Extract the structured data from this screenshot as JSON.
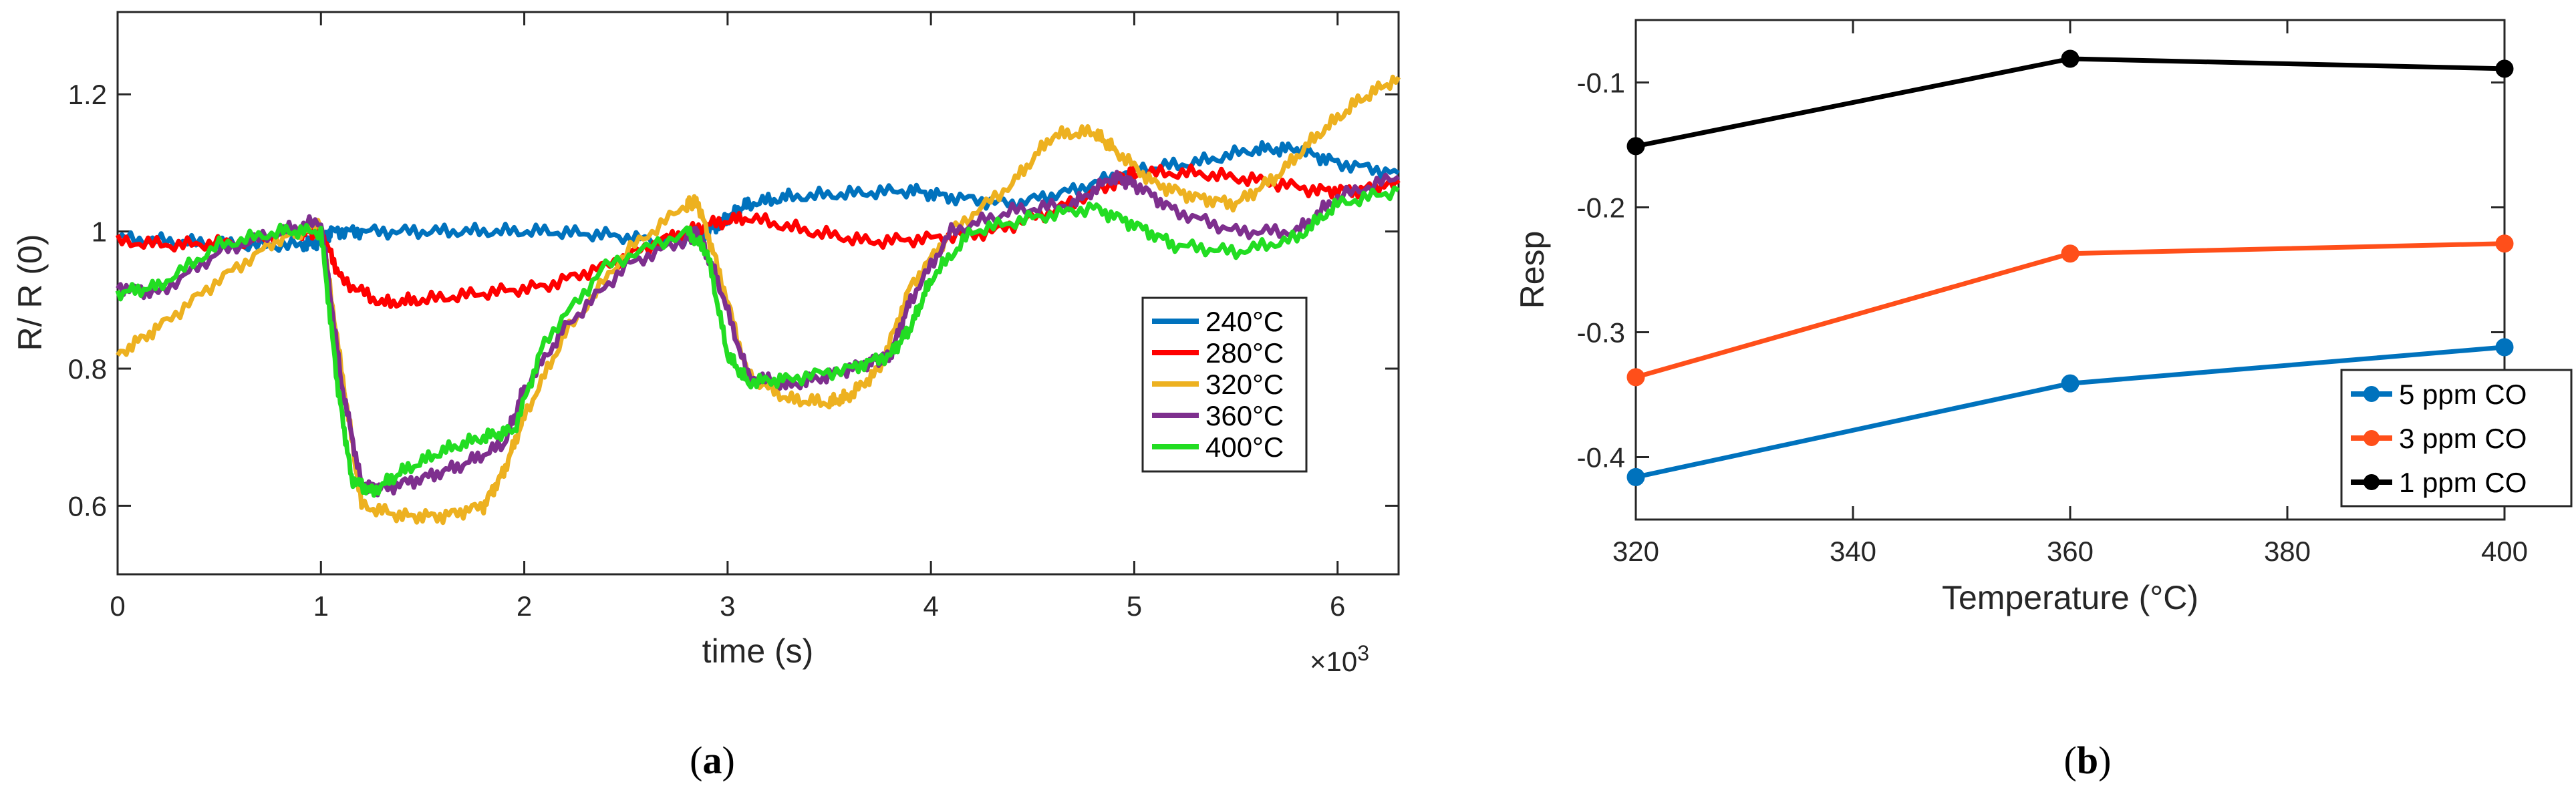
{
  "chart_data": [
    {
      "id": "a",
      "type": "line",
      "caption_open": "(",
      "caption": "a",
      "caption_close": ")",
      "xlabel": "time (s)",
      "ylabel": "R/ R (0)",
      "x_exponent_label": "×10",
      "x_exponent_power": "3",
      "xlim": [
        0,
        6.3
      ],
      "ylim": [
        0.5,
        1.32
      ],
      "xticks": [
        0,
        1,
        2,
        3,
        4,
        5,
        6
      ],
      "xtick_labels": [
        "0",
        "1",
        "2",
        "3",
        "4",
        "5",
        "6"
      ],
      "yticks": [
        0.6,
        0.8,
        1.0,
        1.2
      ],
      "ytick_labels": [
        "0.6",
        "0.8",
        "1",
        "1.2"
      ],
      "legend_position": "right-middle",
      "series": [
        {
          "name": "240°C",
          "color": "#0072BD",
          "x": [
            0,
            0.3,
            0.6,
            0.9,
            1.0,
            1.05,
            1.2,
            1.5,
            1.8,
            2.1,
            2.4,
            2.7,
            2.9,
            3.0,
            3.1,
            3.3,
            3.6,
            3.9,
            4.1,
            4.4,
            4.7,
            5.0,
            5.3,
            5.6,
            5.8,
            6.0,
            6.3
          ],
          "y": [
            0.99,
            0.985,
            0.98,
            0.98,
            0.985,
            1.0,
            1.0,
            1.0,
            1.0,
            1.0,
            0.995,
            0.985,
            1.0,
            1.02,
            1.04,
            1.05,
            1.055,
            1.06,
            1.05,
            1.04,
            1.06,
            1.09,
            1.1,
            1.12,
            1.12,
            1.1,
            1.085
          ]
        },
        {
          "name": "280°C",
          "color": "#FF0000",
          "x": [
            0,
            0.3,
            0.6,
            0.9,
            1.0,
            1.1,
            1.3,
            1.5,
            1.8,
            2.1,
            2.4,
            2.7,
            2.9,
            3.1,
            3.4,
            3.7,
            4.0,
            4.3,
            4.6,
            4.9,
            5.0,
            5.3,
            5.6,
            5.9,
            6.1,
            6.3
          ],
          "y": [
            0.985,
            0.98,
            0.985,
            1.0,
            1.0,
            0.93,
            0.895,
            0.9,
            0.91,
            0.92,
            0.95,
            0.99,
            1.01,
            1.02,
            1.0,
            0.985,
            0.99,
            1.0,
            1.03,
            1.07,
            1.085,
            1.085,
            1.075,
            1.06,
            1.06,
            1.07
          ]
        },
        {
          "name": "320°C",
          "color": "#EDB120",
          "x": [
            0,
            0.2,
            0.5,
            0.8,
            1.0,
            1.1,
            1.2,
            1.4,
            1.6,
            1.8,
            1.9,
            2.0,
            2.2,
            2.5,
            2.8,
            2.85,
            2.95,
            3.1,
            3.3,
            3.5,
            3.6,
            3.75,
            3.9,
            4.1,
            4.4,
            4.6,
            4.8,
            4.9,
            5.1,
            5.3,
            5.5,
            5.7,
            5.9,
            6.1,
            6.3
          ],
          "y": [
            0.82,
            0.86,
            0.93,
            0.99,
            1.01,
            0.8,
            0.6,
            0.585,
            0.585,
            0.6,
            0.65,
            0.73,
            0.85,
            0.97,
            1.04,
            1.045,
            0.95,
            0.79,
            0.755,
            0.75,
            0.76,
            0.8,
            0.92,
            1.0,
            1.07,
            1.14,
            1.145,
            1.12,
            1.07,
            1.05,
            1.04,
            1.08,
            1.14,
            1.19,
            1.225
          ]
        },
        {
          "name": "360°C",
          "color": "#7E2F8E",
          "x": [
            0,
            0.2,
            0.5,
            0.8,
            1.0,
            1.1,
            1.2,
            1.3,
            1.5,
            1.7,
            1.9,
            2.0,
            2.2,
            2.5,
            2.8,
            2.85,
            2.95,
            3.1,
            3.3,
            3.5,
            3.7,
            3.8,
            3.9,
            4.1,
            4.4,
            4.7,
            4.9,
            5.0,
            5.2,
            5.5,
            5.8,
            6.0,
            6.3
          ],
          "y": [
            0.92,
            0.91,
            0.97,
            1.0,
            1.015,
            0.78,
            0.63,
            0.625,
            0.64,
            0.66,
            0.69,
            0.77,
            0.86,
            0.95,
            0.99,
            1.0,
            0.93,
            0.79,
            0.775,
            0.79,
            0.81,
            0.82,
            0.9,
            1.0,
            1.03,
            1.04,
            1.08,
            1.07,
            1.03,
            1.0,
            1.0,
            1.05,
            1.08
          ]
        },
        {
          "name": "400°C",
          "color": "#22DD22",
          "x": [
            0,
            0.2,
            0.5,
            0.8,
            1.0,
            1.08,
            1.15,
            1.25,
            1.4,
            1.6,
            1.8,
            1.95,
            2.1,
            2.4,
            2.8,
            2.9,
            3.0,
            3.1,
            3.3,
            3.6,
            3.8,
            3.9,
            4.0,
            4.2,
            4.5,
            4.8,
            5.0,
            5.2,
            5.5,
            5.8,
            6.0,
            6.3
          ],
          "y": [
            0.91,
            0.92,
            0.98,
            1.0,
            1.0,
            0.78,
            0.64,
            0.62,
            0.65,
            0.68,
            0.7,
            0.71,
            0.84,
            0.95,
            1.0,
            0.97,
            0.82,
            0.78,
            0.785,
            0.8,
            0.82,
            0.86,
            0.93,
            1.0,
            1.02,
            1.035,
            1.01,
            0.98,
            0.97,
            0.99,
            1.04,
            1.06
          ]
        }
      ]
    },
    {
      "id": "b",
      "type": "line",
      "caption_open": "(",
      "caption": "b",
      "caption_close": ")",
      "xlabel": "Temperature (°C)",
      "ylabel": "Resp",
      "xlim": [
        320,
        400
      ],
      "ylim": [
        -0.45,
        -0.05
      ],
      "xticks": [
        320,
        340,
        360,
        380,
        400
      ],
      "xtick_labels": [
        "320",
        "340",
        "360",
        "380",
        "400"
      ],
      "yticks": [
        -0.4,
        -0.3,
        -0.2,
        -0.1
      ],
      "ytick_labels": [
        "-0.4",
        "-0.3",
        "-0.2",
        "-0.1"
      ],
      "legend_position": "bottom-right",
      "series": [
        {
          "name": "5 ppm CO",
          "color": "#0072BD",
          "x": [
            320,
            360,
            400
          ],
          "y": [
            -0.416,
            -0.341,
            -0.312
          ]
        },
        {
          "name": "3 ppm CO",
          "color": "#FF4F1A",
          "x": [
            320,
            360,
            400
          ],
          "y": [
            -0.336,
            -0.237,
            -0.229
          ]
        },
        {
          "name": "1 ppm CO",
          "color": "#000000",
          "x": [
            320,
            360,
            400
          ],
          "y": [
            -0.151,
            -0.081,
            -0.089
          ]
        }
      ]
    }
  ]
}
